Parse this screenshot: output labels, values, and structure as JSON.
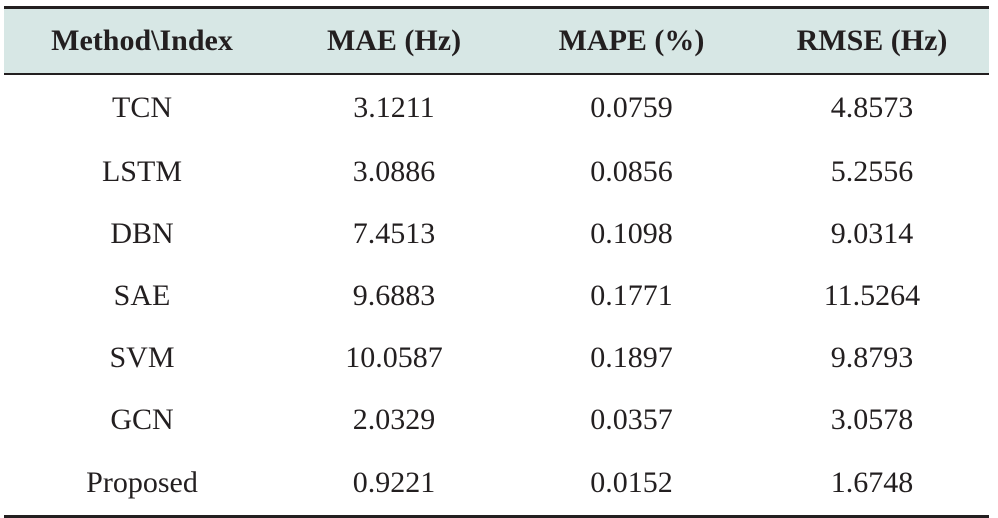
{
  "table": {
    "headers": [
      "Method\\Index",
      "MAE (Hz)",
      "MAPE (%)",
      "RMSE (Hz)"
    ],
    "rows": [
      [
        "TCN",
        "3.1211",
        "0.0759",
        "4.8573"
      ],
      [
        "LSTM",
        "3.0886",
        "0.0856",
        "5.2556"
      ],
      [
        "DBN",
        "7.4513",
        "0.1098",
        "9.0314"
      ],
      [
        "SAE",
        "9.6883",
        "0.1771",
        "11.5264"
      ],
      [
        "SVM",
        "10.0587",
        "0.1897",
        "9.8793"
      ],
      [
        "GCN",
        "2.0329",
        "0.0357",
        "3.0578"
      ],
      [
        "Proposed",
        "0.9221",
        "0.0152",
        "1.6748"
      ]
    ]
  },
  "colors": {
    "header_background": "#d7e7e5",
    "text": "#231f20",
    "rule": "#231f20"
  }
}
